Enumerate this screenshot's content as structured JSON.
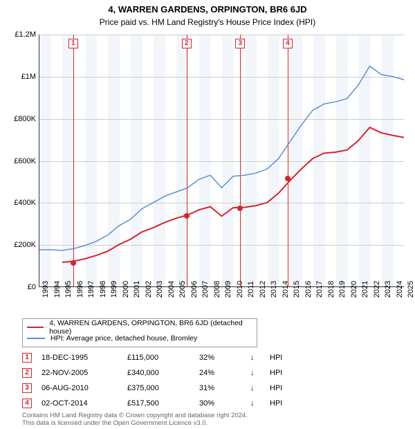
{
  "title": "4, WARREN GARDENS, ORPINGTON, BR6 6JD",
  "subtitle": "Price paid vs. HM Land Registry's House Price Index (HPI)",
  "chart": {
    "type": "line",
    "background_color": "#ffffff",
    "grid_color": "#cccccc",
    "alt_band_color": "#f2f6fb",
    "x_axis": {
      "min": 1993,
      "max": 2025,
      "tick_step": 1,
      "label_fontsize": 11,
      "rotation": -90
    },
    "y_axis": {
      "min": 0,
      "max": 1200000,
      "tick_step": 200000,
      "tick_labels": [
        "£0",
        "£200K",
        "£400K",
        "£600K",
        "£800K",
        "£1M",
        "£1.2M"
      ],
      "label_fontsize": 11
    },
    "series": [
      {
        "name": "hpi",
        "label": "HPI: Average price, detached house, Bromley",
        "color": "#5b8fd6",
        "line_width": 1.5,
        "data": [
          [
            1993,
            175000
          ],
          [
            1994,
            175000
          ],
          [
            1995,
            172000
          ],
          [
            1996,
            180000
          ],
          [
            1997,
            195000
          ],
          [
            1998,
            215000
          ],
          [
            1999,
            245000
          ],
          [
            2000,
            290000
          ],
          [
            2001,
            320000
          ],
          [
            2002,
            370000
          ],
          [
            2003,
            400000
          ],
          [
            2004,
            430000
          ],
          [
            2005,
            450000
          ],
          [
            2006,
            470000
          ],
          [
            2007,
            510000
          ],
          [
            2008,
            530000
          ],
          [
            2009,
            470000
          ],
          [
            2010,
            525000
          ],
          [
            2011,
            530000
          ],
          [
            2012,
            540000
          ],
          [
            2013,
            560000
          ],
          [
            2014,
            610000
          ],
          [
            2015,
            690000
          ],
          [
            2016,
            770000
          ],
          [
            2017,
            840000
          ],
          [
            2018,
            870000
          ],
          [
            2019,
            880000
          ],
          [
            2020,
            895000
          ],
          [
            2021,
            960000
          ],
          [
            2022,
            1050000
          ],
          [
            2023,
            1010000
          ],
          [
            2024,
            1000000
          ],
          [
            2025,
            985000
          ]
        ]
      },
      {
        "name": "property",
        "label": "4, WARREN GARDENS, ORPINGTON, BR6 6JD (detached house)",
        "color": "#d8232a",
        "line_width": 2,
        "data": [
          [
            1995,
            115000
          ],
          [
            1996,
            120000
          ],
          [
            1997,
            132000
          ],
          [
            1998,
            148000
          ],
          [
            1999,
            168000
          ],
          [
            2000,
            200000
          ],
          [
            2001,
            225000
          ],
          [
            2002,
            260000
          ],
          [
            2003,
            280000
          ],
          [
            2004,
            305000
          ],
          [
            2005,
            325000
          ],
          [
            2006,
            340000
          ],
          [
            2007,
            365000
          ],
          [
            2008,
            380000
          ],
          [
            2009,
            335000
          ],
          [
            2010,
            375000
          ],
          [
            2011,
            377000
          ],
          [
            2012,
            385000
          ],
          [
            2013,
            400000
          ],
          [
            2014,
            445000
          ],
          [
            2015,
            505000
          ],
          [
            2016,
            560000
          ],
          [
            2017,
            610000
          ],
          [
            2018,
            635000
          ],
          [
            2019,
            640000
          ],
          [
            2020,
            650000
          ],
          [
            2021,
            695000
          ],
          [
            2022,
            758000
          ],
          [
            2023,
            732000
          ],
          [
            2024,
            720000
          ],
          [
            2025,
            710000
          ]
        ]
      }
    ],
    "markers": [
      {
        "n": "1",
        "year": 1995.96,
        "price": 115000,
        "color": "#d8232a"
      },
      {
        "n": "2",
        "year": 2005.89,
        "price": 340000,
        "color": "#d8232a"
      },
      {
        "n": "3",
        "year": 2010.6,
        "price": 375000,
        "color": "#d8232a"
      },
      {
        "n": "4",
        "year": 2014.75,
        "price": 517500,
        "color": "#d8232a"
      }
    ]
  },
  "legend": {
    "items": [
      {
        "color": "#d8232a",
        "text": "4, WARREN GARDENS, ORPINGTON, BR6 6JD (detached house)"
      },
      {
        "color": "#5b8fd6",
        "text": "HPI: Average price, detached house, Bromley"
      }
    ]
  },
  "sales_table": {
    "arrow_glyph": "↓",
    "hpi_label": "HPI",
    "marker_color": "#d8232a",
    "rows": [
      {
        "n": "1",
        "date": "18-DEC-1995",
        "price": "£115,000",
        "delta": "32%"
      },
      {
        "n": "2",
        "date": "22-NOV-2005",
        "price": "£340,000",
        "delta": "24%"
      },
      {
        "n": "3",
        "date": "06-AUG-2010",
        "price": "£375,000",
        "delta": "31%"
      },
      {
        "n": "4",
        "date": "02-OCT-2014",
        "price": "£517,500",
        "delta": "30%"
      }
    ]
  },
  "footer_line1": "Contains HM Land Registry data © Crown copyright and database right 2024.",
  "footer_line2": "This data is licensed under the Open Government Licence v3.0."
}
